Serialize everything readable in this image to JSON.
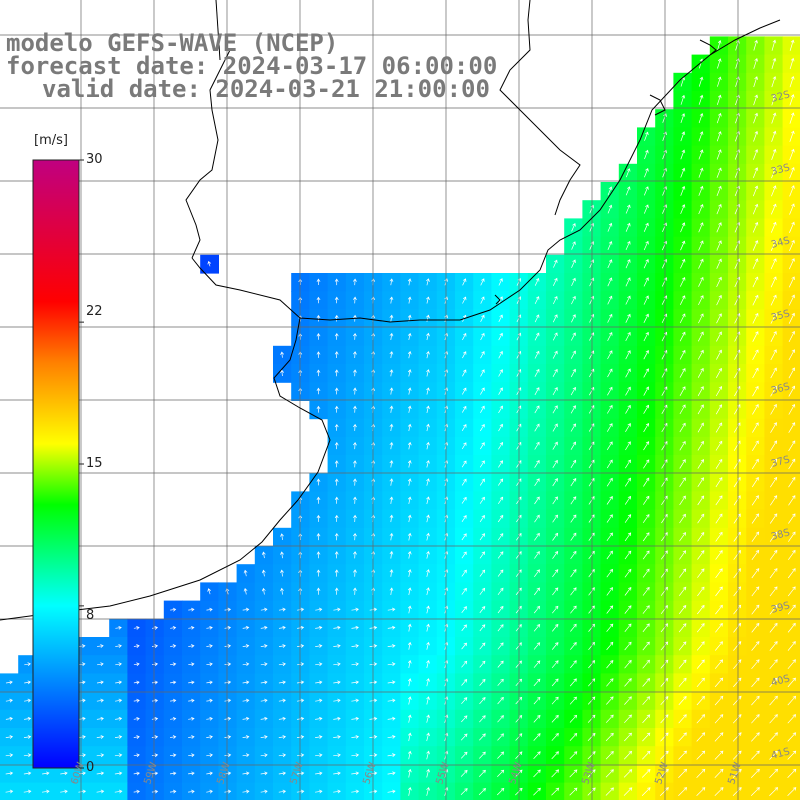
{
  "title": {
    "line1": "modelo GEFS-WAVE (NCEP)",
    "line2": "forecast date: 2024-03-17 06:00:00",
    "line3": "valid date: 2024-03-21 21:00:00"
  },
  "colorbar": {
    "unit": "[m/s]",
    "ticks": [
      "30",
      "22",
      "15",
      "8",
      "0"
    ],
    "tick_values": [
      30,
      22,
      15,
      8,
      0
    ],
    "stops": [
      "#0000ff",
      "#00ffff",
      "#00ff00",
      "#ffff00",
      "#ff8000",
      "#ff0000",
      "#c00080"
    ]
  },
  "map": {
    "variable": "wind speed and direction",
    "land_color": "#ffffff",
    "grid_color": "#666666",
    "coast_color": "#000000",
    "lon_labels": [
      "60W",
      "59W",
      "58W",
      "57W",
      "56W",
      "55W",
      "54W",
      "53W",
      "52W",
      "51W"
    ],
    "lat_labels": [
      "32S",
      "33S",
      "34S",
      "35S",
      "36S",
      "37S",
      "38S",
      "39S",
      "40S",
      "41S"
    ]
  }
}
